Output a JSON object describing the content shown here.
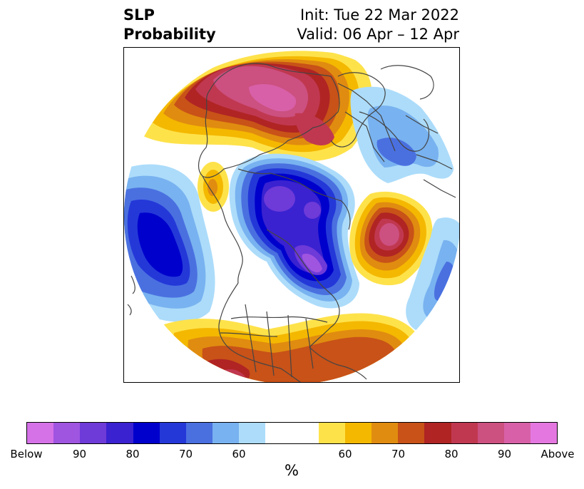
{
  "title": {
    "left_line1": "SLP",
    "left_line2": "Probability",
    "right_line1": "Init: Tue 22 Mar 2022",
    "right_line2": "Valid: 06 Apr – 12 Apr"
  },
  "map": {
    "projection": "north-polar-stereographic",
    "land_outline_color": "#444444"
  },
  "colorbar": {
    "unit": "%",
    "colors": [
      "#d672e8",
      "#9f55e0",
      "#6e3ad8",
      "#3a22d0",
      "#0000cc",
      "#2438d8",
      "#4a70e0",
      "#78b2f0",
      "#acdcfa",
      "#ffffff",
      "#ffffff",
      "#fee24a",
      "#f4b800",
      "#e08c10",
      "#c85218",
      "#b02424",
      "#c03850",
      "#cc5080",
      "#d860a8",
      "#e478e0"
    ],
    "ticks": [
      "Below",
      "90",
      "80",
      "70",
      "60",
      "",
      "60",
      "70",
      "80",
      "90",
      "Above"
    ]
  }
}
